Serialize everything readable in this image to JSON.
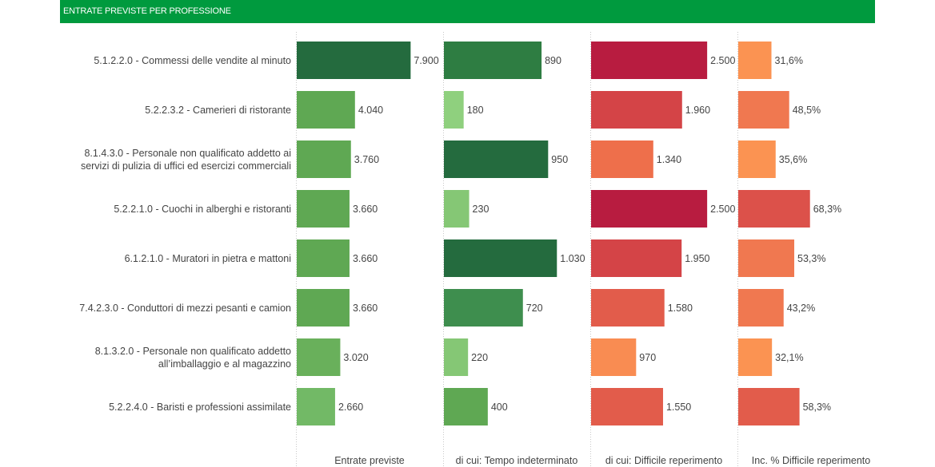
{
  "header": {
    "title": "ENTRATE PREVISTE PER PROFESSIONE"
  },
  "chart_data": {
    "type": "bar",
    "title": "ENTRATE PREVISTE PER PROFESSIONE",
    "categories": [
      [
        "5.1.2.2.0 - Commessi delle vendite al minuto"
      ],
      [
        "5.2.2.3.2 - Camerieri di ristorante"
      ],
      [
        "8.1.4.3.0 - Personale non qualificato addetto ai",
        "servizi di pulizia di uffici ed esercizi commerciali"
      ],
      [
        "5.2.2.1.0 - Cuochi in alberghi e ristoranti"
      ],
      [
        "6.1.2.1.0 - Muratori in pietra e mattoni"
      ],
      [
        "7.4.2.3.0 - Conduttori di mezzi pesanti e camion"
      ],
      [
        "8.1.3.2.0 - Personale non qualificato addetto",
        "all’imballaggio e al magazzino"
      ],
      [
        "5.2.2.4.0 - Baristi e professioni assimilate"
      ]
    ],
    "series": [
      {
        "name": "Entrate previste",
        "values": [
          7900,
          4040,
          3760,
          3660,
          3660,
          3660,
          3020,
          2660
        ],
        "labels": [
          "7.900",
          "4.040",
          "3.760",
          "3.660",
          "3.660",
          "3.660",
          "3.020",
          "2.660"
        ],
        "max": 8600,
        "colors": [
          "#246b3e",
          "#5fa853",
          "#5fa853",
          "#5fa853",
          "#5fa853",
          "#5fa853",
          "#69b05b",
          "#72b966"
        ]
      },
      {
        "name": "di cui: Tempo indeterminato",
        "values": [
          890,
          180,
          950,
          230,
          1030,
          720,
          220,
          400
        ],
        "labels": [
          "890",
          "180",
          "950",
          "230",
          "1.030",
          "720",
          "220",
          "400"
        ],
        "max": 1130,
        "colors": [
          "#2e7d42",
          "#8fd07e",
          "#246b3e",
          "#85c775",
          "#246b3e",
          "#3e8e4e",
          "#85c775",
          "#5fa853"
        ]
      },
      {
        "name": "di cui: Difficile reperimento",
        "values": [
          2500,
          1960,
          1340,
          2500,
          1950,
          1580,
          970,
          1550
        ],
        "labels": [
          "2.500",
          "1.960",
          "1.340",
          "2.500",
          "1.950",
          "1.580",
          "970",
          "1.550"
        ],
        "max": 2670,
        "colors": [
          "#b81c40",
          "#d44447",
          "#ee6f4b",
          "#b81c40",
          "#d44447",
          "#e25c4b",
          "#f98c52",
          "#e25c4b"
        ]
      },
      {
        "name": "Inc. % Difficile reperimento",
        "values": [
          31.6,
          48.5,
          35.6,
          68.3,
          53.3,
          43.2,
          32.1,
          58.3
        ],
        "labels": [
          "31,6%",
          "48,5%",
          "35,6%",
          "68,3%",
          "53,3%",
          "43,2%",
          "32,1%",
          "58,3%"
        ],
        "max": 118,
        "colors": [
          "#fb9352",
          "#f07850",
          "#fb9352",
          "#dc514a",
          "#f07850",
          "#f07850",
          "#fb9352",
          "#e25c4b"
        ]
      }
    ],
    "legend": "none",
    "grid": false
  }
}
